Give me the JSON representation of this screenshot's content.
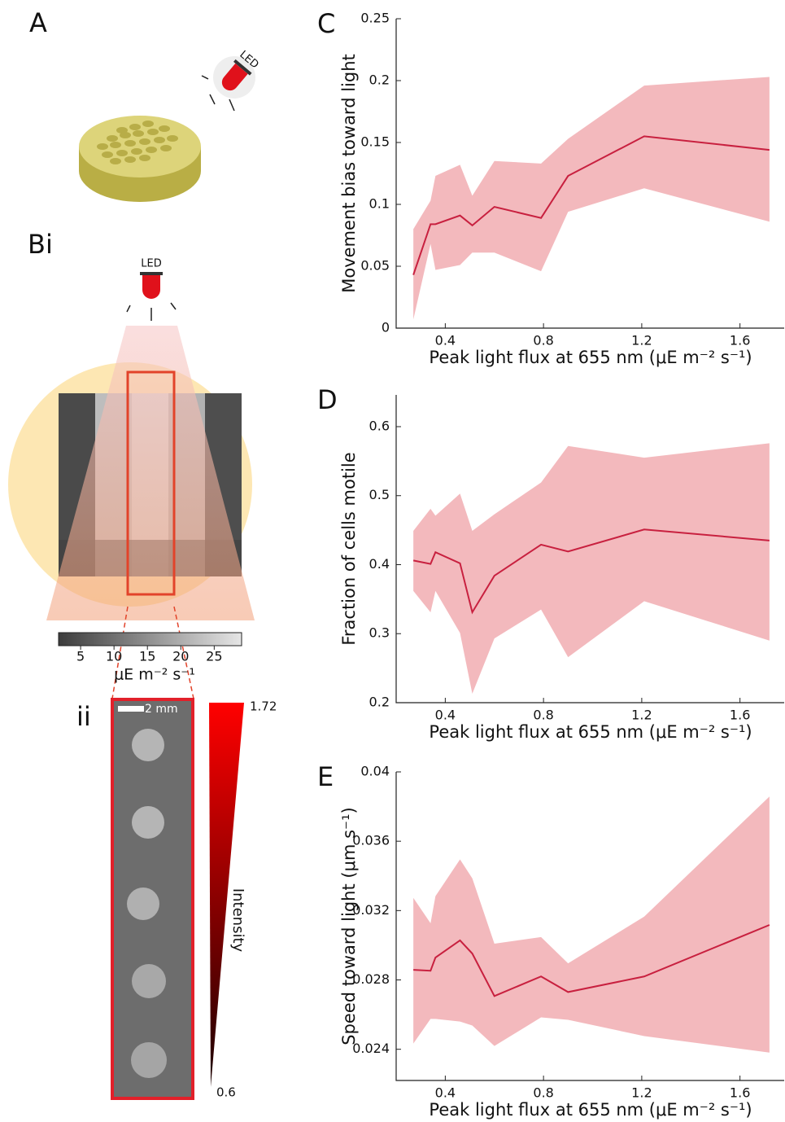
{
  "figure": {
    "panel_labels": [
      "A",
      "Bi",
      "ii"
    ],
    "led_labels": [
      "LED",
      "LED"
    ],
    "colorbar": {
      "lim": [
        1.7,
        29.1
      ],
      "ticks": [
        5,
        10,
        15,
        20,
        25
      ],
      "label": "μE m⁻² s⁻¹"
    },
    "scale_bar": "2 mm",
    "intensity": {
      "label": "Intensity",
      "top": 1.72,
      "bottom": 0.6
    }
  },
  "chart_data": [
    {
      "type": "line",
      "panel": "C",
      "ylabel": "Movement bias toward light",
      "xlabel": "Peak light flux at 655 nm (μE m⁻² s⁻¹)",
      "x": [
        0.27,
        0.34,
        0.36,
        0.46,
        0.51,
        0.6,
        0.79,
        0.9,
        1.21,
        1.72
      ],
      "values": [
        0.043,
        0.084,
        0.084,
        0.091,
        0.083,
        0.098,
        0.089,
        0.123,
        0.155,
        0.144
      ],
      "band_upper": [
        0.08,
        0.103,
        0.123,
        0.132,
        0.107,
        0.135,
        0.133,
        0.153,
        0.196,
        0.203
      ],
      "band_lower": [
        0.007,
        0.068,
        0.047,
        0.051,
        0.061,
        0.061,
        0.046,
        0.094,
        0.113,
        0.086
      ],
      "line_color": "#c8203f",
      "band_color": "#f3b9bd",
      "xlim": [
        0.2,
        1.78
      ],
      "xticks": [
        0.4,
        0.8,
        1.2,
        1.6
      ],
      "ylim": [
        0,
        0.25
      ],
      "yticks": [
        0,
        0.05,
        0.1,
        0.15,
        0.2,
        0.25
      ]
    },
    {
      "type": "line",
      "panel": "D",
      "ylabel": "Fraction of cells motile",
      "xlabel": "Peak light flux at 655 nm (μE m⁻² s⁻¹)",
      "x": [
        0.27,
        0.34,
        0.36,
        0.46,
        0.51,
        0.6,
        0.79,
        0.9,
        1.21,
        1.72
      ],
      "values": [
        0.406,
        0.401,
        0.418,
        0.402,
        0.331,
        0.384,
        0.429,
        0.419,
        0.451,
        0.435
      ],
      "band_upper": [
        0.449,
        0.481,
        0.471,
        0.503,
        0.449,
        0.473,
        0.519,
        0.572,
        0.555,
        0.576
      ],
      "band_lower": [
        0.362,
        0.331,
        0.362,
        0.301,
        0.213,
        0.293,
        0.335,
        0.266,
        0.347,
        0.29
      ],
      "line_color": "#c8203f",
      "band_color": "#f3b9bd",
      "xlim": [
        0.2,
        1.78
      ],
      "xticks": [
        0.4,
        0.8,
        1.2,
        1.6
      ],
      "ylim": [
        0.2,
        0.646
      ],
      "yticks": [
        0.2,
        0.3,
        0.4,
        0.5,
        0.6
      ]
    },
    {
      "type": "line",
      "panel": "E",
      "ylabel": "Speed toward light  (μm s⁻¹)",
      "xlabel": "Peak light flux at 655 nm (μE m⁻² s⁻¹)",
      "x": [
        0.27,
        0.34,
        0.36,
        0.46,
        0.51,
        0.6,
        0.79,
        0.9,
        1.21,
        1.72
      ],
      "values": [
        0.02858,
        0.02853,
        0.02929,
        0.03028,
        0.02952,
        0.02707,
        0.0282,
        0.0273,
        0.0282,
        0.03117
      ],
      "band_upper": [
        0.03273,
        0.03127,
        0.03283,
        0.03495,
        0.03386,
        0.03009,
        0.03047,
        0.02896,
        0.03165,
        0.03858
      ],
      "band_lower": [
        0.02433,
        0.02575,
        0.02575,
        0.0256,
        0.02537,
        0.02419,
        0.02584,
        0.0257,
        0.02476,
        0.02381
      ],
      "line_color": "#c8203f",
      "band_color": "#f3b9bd",
      "xlim": [
        0.2,
        1.78
      ],
      "xticks": [
        0.4,
        0.8,
        1.2,
        1.6
      ],
      "ylim": [
        0.0222,
        0.04
      ],
      "yticks": [
        0.024,
        0.028,
        0.032,
        0.036,
        0.04
      ]
    }
  ]
}
